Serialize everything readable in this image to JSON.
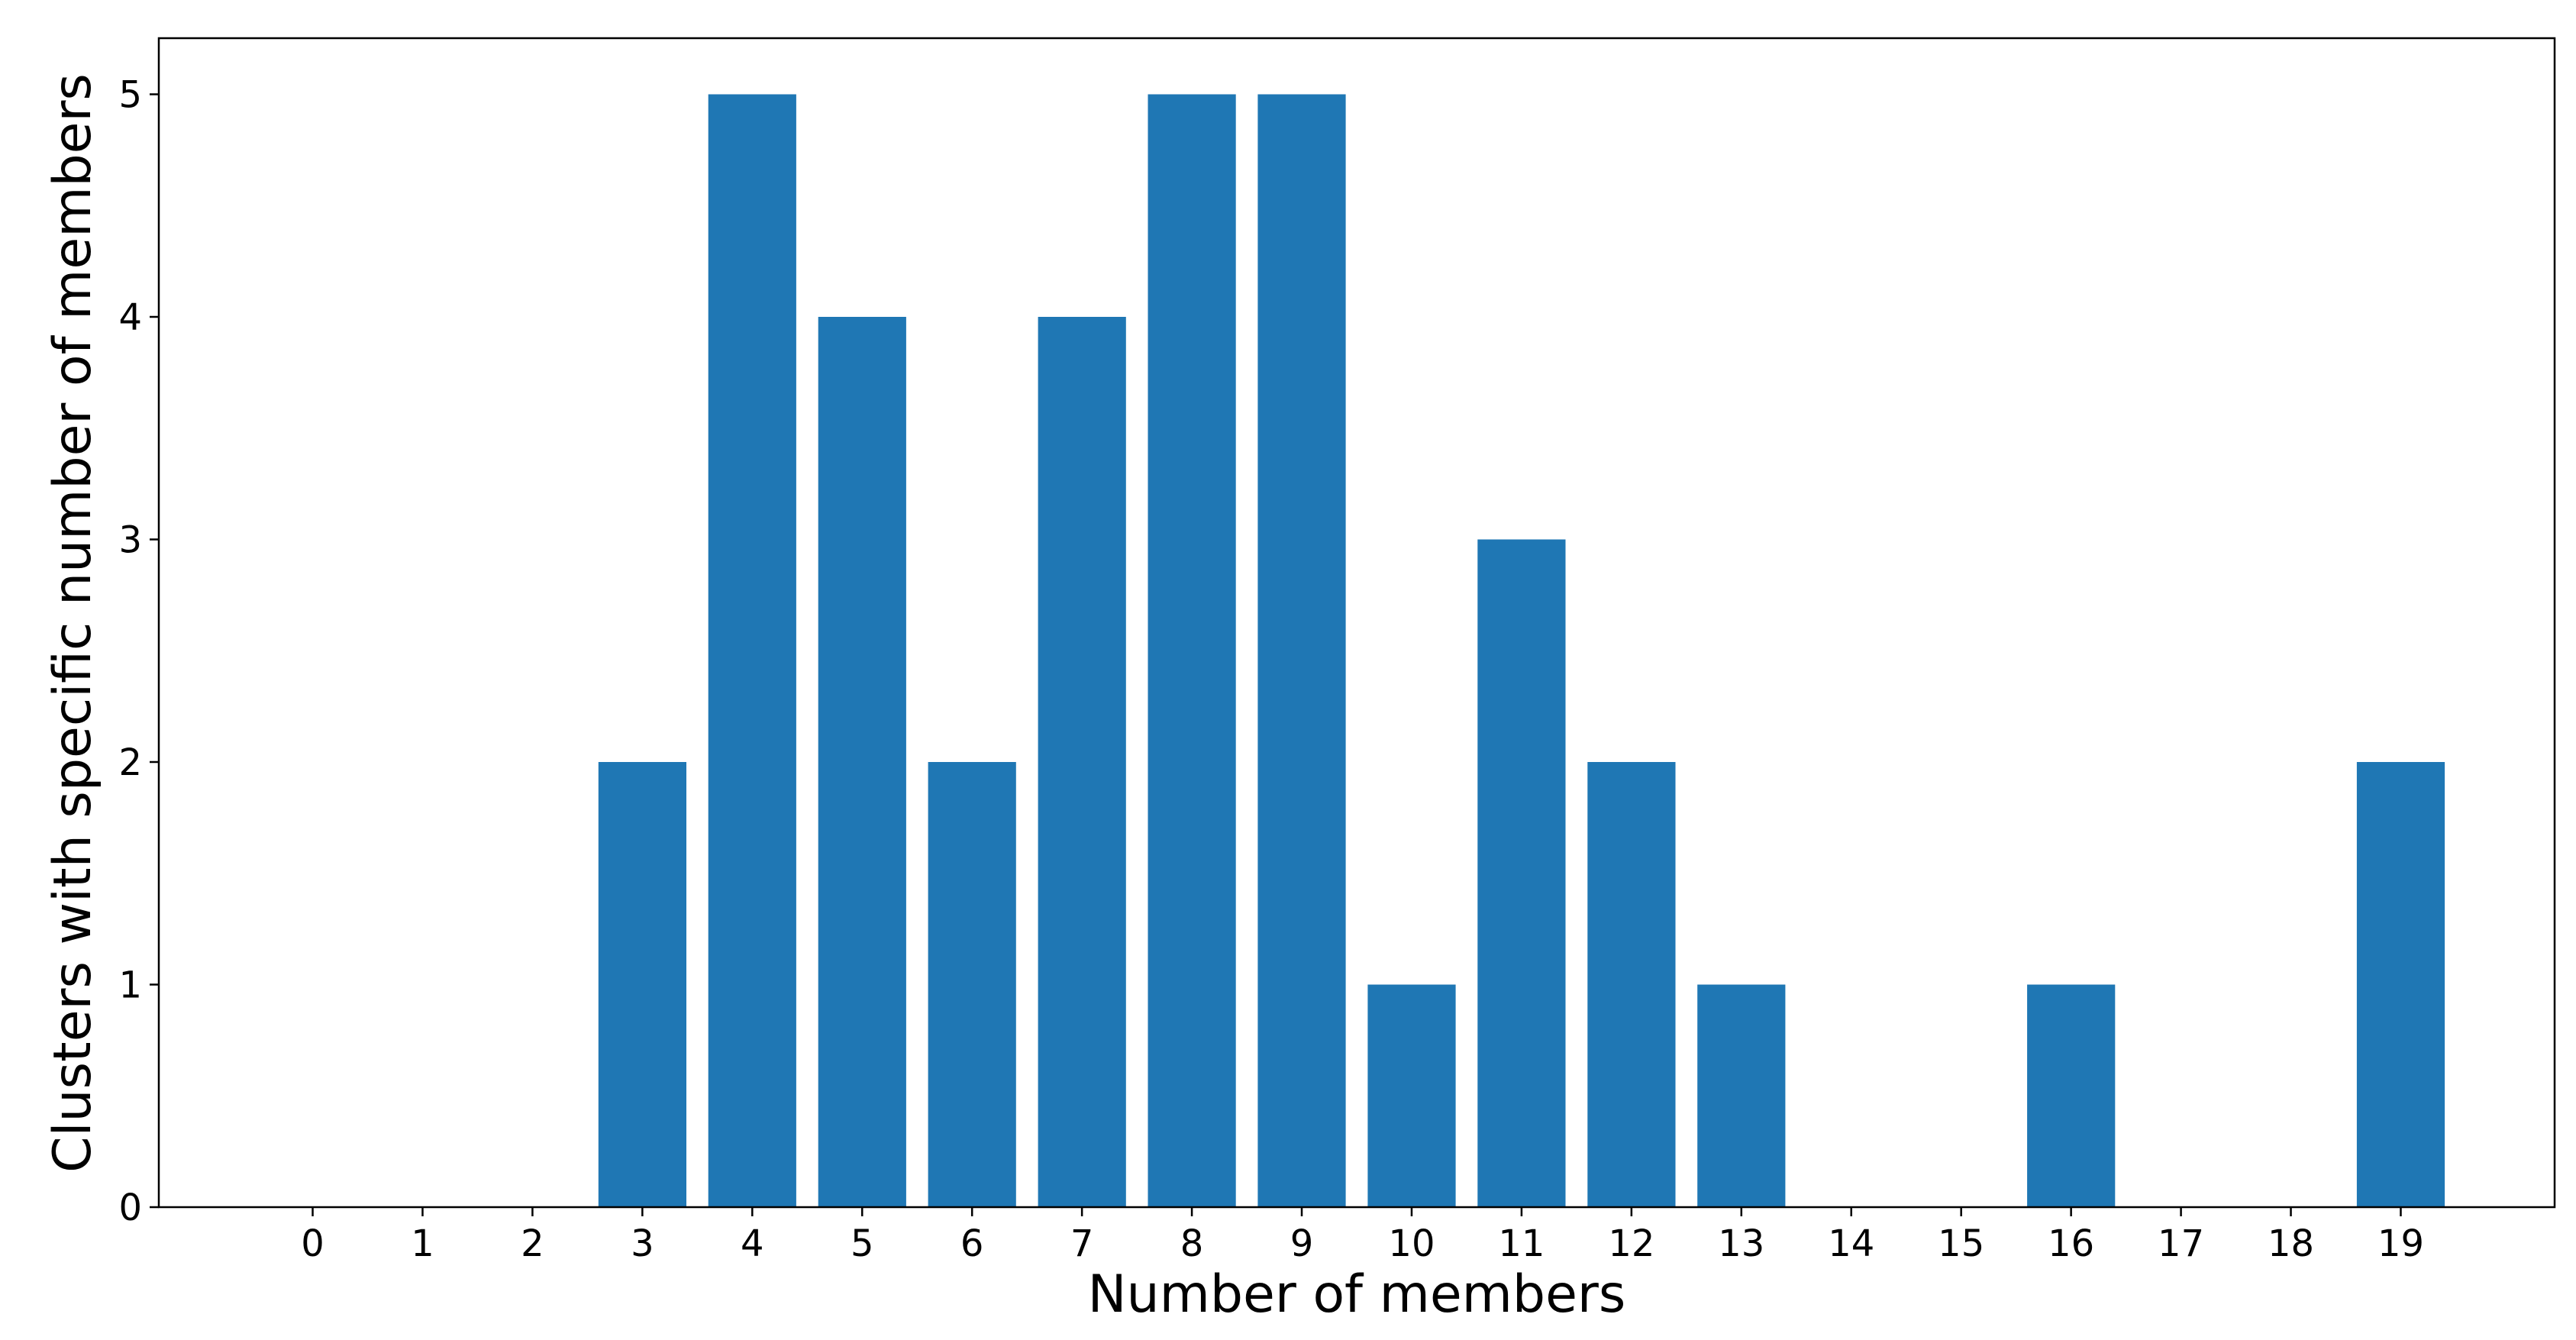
{
  "chart_data": {
    "type": "bar",
    "categories": [
      "0",
      "1",
      "2",
      "3",
      "4",
      "5",
      "6",
      "7",
      "8",
      "9",
      "10",
      "11",
      "12",
      "13",
      "14",
      "15",
      "16",
      "17",
      "18",
      "19"
    ],
    "x": [
      0,
      1,
      2,
      3,
      4,
      5,
      6,
      7,
      8,
      9,
      10,
      11,
      12,
      13,
      14,
      15,
      16,
      17,
      18,
      19
    ],
    "values": [
      0,
      0,
      0,
      2,
      5,
      4,
      2,
      4,
      5,
      5,
      1,
      3,
      2,
      1,
      0,
      0,
      1,
      0,
      0,
      2
    ],
    "title": "",
    "xlabel": "Number of members",
    "ylabel": "Clusters with specific number of members",
    "ylim": [
      0,
      5.25
    ],
    "yticks": [
      "0",
      "1",
      "2",
      "3",
      "4",
      "5"
    ],
    "grid": false,
    "bar_color": "#1f77b4"
  }
}
